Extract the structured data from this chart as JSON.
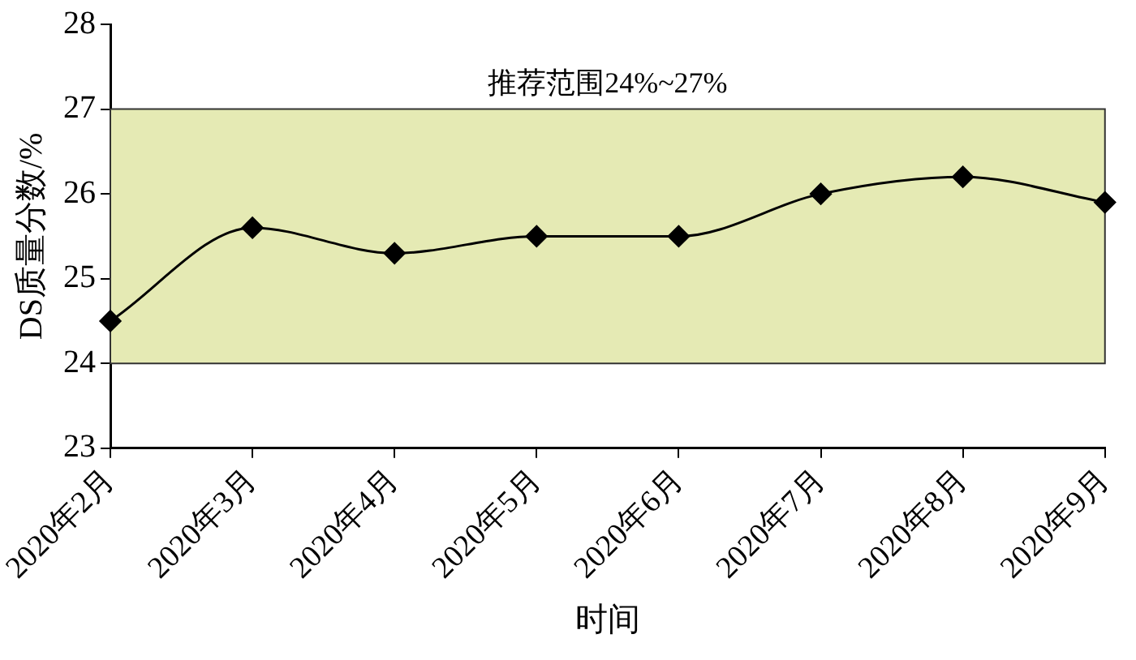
{
  "chart_data": {
    "type": "line",
    "xlabel": "时间",
    "ylabel": "DS质量分数/%",
    "categories": [
      "2020年2月",
      "2020年3月",
      "2020年4月",
      "2020年5月",
      "2020年6月",
      "2020年7月",
      "2020年8月",
      "2020年9月"
    ],
    "series": [
      {
        "color": "#000000",
        "values": [
          24.5,
          25.6,
          25.3,
          25.5,
          25.5,
          26.0,
          26.2,
          25.9
        ]
      }
    ],
    "ylim": [
      23,
      28
    ],
    "yticks": [
      23,
      24,
      25,
      26,
      27,
      28
    ],
    "grid": false,
    "legend": false,
    "marker": "diamond",
    "line_style": "solid",
    "bands": [
      {
        "axis": "y",
        "from": 24,
        "to": 27,
        "label": "推荐范围24%~27%",
        "color": "#e5eab4"
      }
    ]
  }
}
